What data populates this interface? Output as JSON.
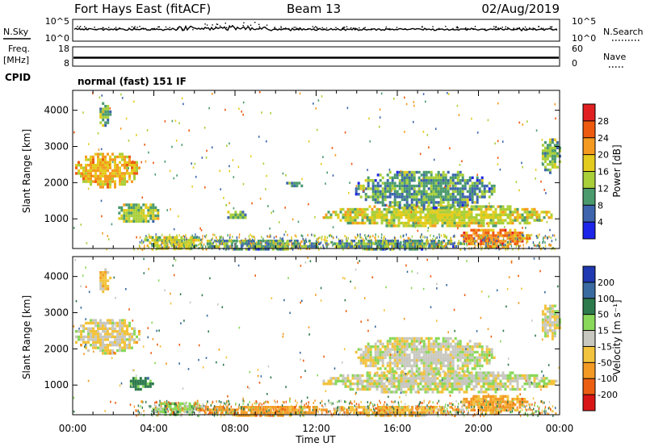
{
  "header": {
    "station": "Fort Hays East (fitACF)",
    "beam": "Beam 13",
    "date": "02/Aug/2019"
  },
  "noise_panel": {
    "left_label": "N.Sky",
    "right_label": "N.Search",
    "left_ticks": [
      "10^5",
      "10^0"
    ],
    "right_ticks": [
      "10^5",
      "10^0"
    ]
  },
  "freq_panel": {
    "left_label_line1": "Freq.",
    "left_label_line2": "[MHz]",
    "right_label": "Nave",
    "left_ticks": [
      "18",
      "8"
    ],
    "right_ticks": [
      "60",
      "0"
    ]
  },
  "cpid_panel": {
    "label": "CPID",
    "text": "normal (fast) 151 IF"
  },
  "power_panel": {
    "ylabel": "Slant Range [km]",
    "cbar_label": "Power [dB]",
    "cbar_ticks": [
      "28",
      "24",
      "20",
      "16",
      "12",
      "8",
      "4"
    ],
    "cbar_colors": [
      "#e02020",
      "#ee5a10",
      "#f59a20",
      "#e4cc1e",
      "#a9cf39",
      "#4a9a6e",
      "#3d64ad",
      "#1d25e8"
    ]
  },
  "velocity_panel": {
    "ylabel": "Slant Range [km]",
    "cbar_label": "Velocity [m s⁻¹]",
    "cbar_ticks": [
      "200",
      "100",
      "50",
      "15",
      "-15",
      "-50",
      "-100",
      "-200"
    ],
    "cbar_colors": [
      "#2038b0",
      "#3a6ba0",
      "#2d7a4c",
      "#8ad85a",
      "#c8c8c0",
      "#f2c33c",
      "#f39a24",
      "#ec5f12",
      "#d91616"
    ]
  },
  "x_axis": {
    "label": "Time UT",
    "ticks": [
      "00:00",
      "04:00",
      "08:00",
      "12:00",
      "16:00",
      "20:00",
      "00:00"
    ]
  },
  "chart_data": {
    "type": "heatmap",
    "x_unit": "hours UT",
    "xlim": [
      0,
      24
    ],
    "ylim": [
      180,
      4550
    ],
    "y_ticks": [
      1000,
      2000,
      3000,
      4000
    ],
    "power_regions": [
      {
        "t0": 0.0,
        "t1": 3.3,
        "r0": 1900,
        "r1": 2900,
        "level": 20
      },
      {
        "t0": 1.2,
        "t1": 1.8,
        "r0": 3600,
        "r1": 4300,
        "level": 12
      },
      {
        "t0": 2.0,
        "t1": 4.4,
        "r0": 900,
        "r1": 1500,
        "level": 14
      },
      {
        "t0": 3.4,
        "t1": 6.4,
        "r0": 180,
        "r1": 600,
        "level": 16
      },
      {
        "t0": 6.0,
        "t1": 12.5,
        "r0": 180,
        "r1": 500,
        "level": 10
      },
      {
        "t0": 7.5,
        "t1": 8.6,
        "r0": 1000,
        "r1": 1300,
        "level": 12
      },
      {
        "t0": 10.4,
        "t1": 11.6,
        "r0": 1900,
        "r1": 2100,
        "level": 8
      },
      {
        "t0": 12.2,
        "t1": 23.8,
        "r0": 800,
        "r1": 1450,
        "level": 16
      },
      {
        "t0": 13.8,
        "t1": 20.8,
        "r0": 1300,
        "r1": 2400,
        "level": 10
      },
      {
        "t0": 12.5,
        "t1": 19.2,
        "r0": 180,
        "r1": 500,
        "level": 10
      },
      {
        "t0": 19.0,
        "t1": 22.5,
        "r0": 250,
        "r1": 800,
        "level": 24
      },
      {
        "t0": 23.0,
        "t1": 24.0,
        "r0": 2300,
        "r1": 3300,
        "level": 12
      }
    ],
    "velocity_regions": [
      {
        "t0": 0.0,
        "t1": 3.3,
        "r0": 1900,
        "r1": 2900,
        "velocity": -10
      },
      {
        "t0": 1.2,
        "t1": 1.8,
        "r0": 3600,
        "r1": 4300,
        "velocity": -30
      },
      {
        "t0": 2.7,
        "t1": 3.9,
        "r0": 900,
        "r1": 1300,
        "velocity": 70
      },
      {
        "t0": 3.8,
        "t1": 6.4,
        "r0": 180,
        "r1": 600,
        "velocity": 30
      },
      {
        "t0": 6.0,
        "t1": 12.5,
        "r0": 180,
        "r1": 500,
        "velocity": -70
      },
      {
        "t0": 12.2,
        "t1": 23.8,
        "r0": 800,
        "r1": 1450,
        "velocity": 0
      },
      {
        "t0": 13.8,
        "t1": 20.8,
        "r0": 1300,
        "r1": 2400,
        "velocity": 0
      },
      {
        "t0": 12.5,
        "t1": 19.2,
        "r0": 180,
        "r1": 500,
        "velocity": -40
      },
      {
        "t0": 19.0,
        "t1": 22.5,
        "r0": 250,
        "r1": 800,
        "velocity": -60
      },
      {
        "t0": 23.0,
        "t1": 24.0,
        "r0": 2300,
        "r1": 3300,
        "velocity": -5
      }
    ]
  }
}
